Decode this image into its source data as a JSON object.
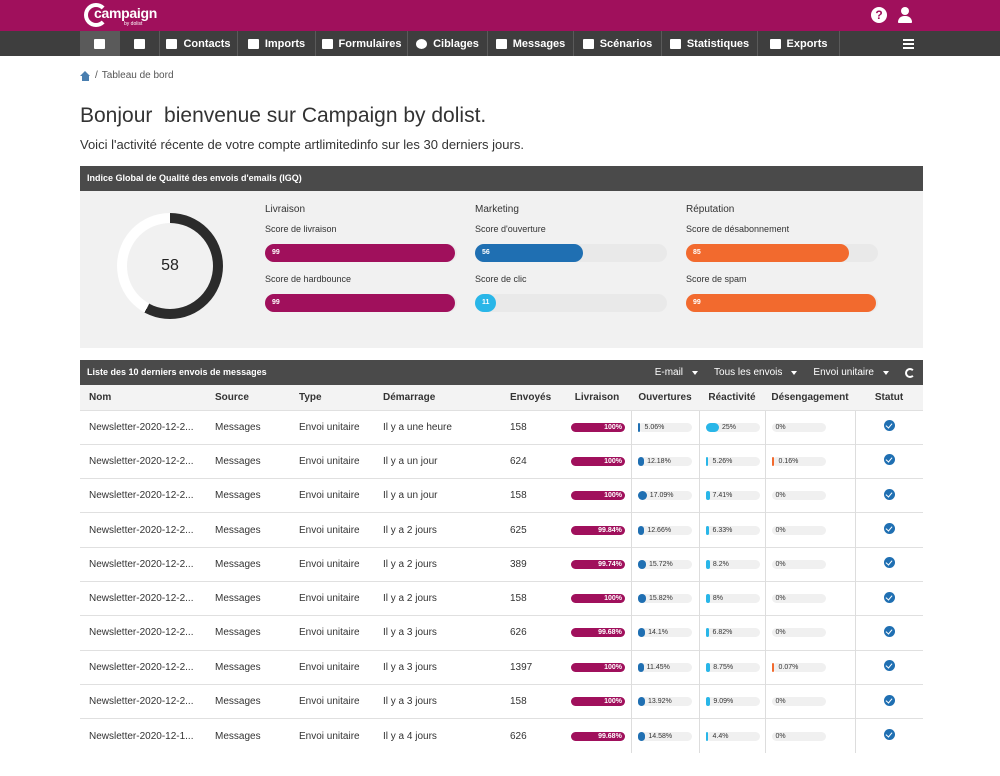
{
  "colors": {
    "brand": "#a0105c",
    "nav": "#3e3e3e",
    "opens": "#1f6fb2",
    "reactivity": "#29b6e8",
    "unsub": "#f26a2e"
  },
  "logo": {
    "text": "campaign",
    "sub": "by dolist"
  },
  "header": {
    "help_icon": "help-icon",
    "user_icon": "user-icon"
  },
  "nav": [
    {
      "label": "",
      "icon": "home-icon"
    },
    {
      "label": "",
      "icon": "tag-icon"
    },
    {
      "label": "Contacts",
      "icon": "book-icon"
    },
    {
      "label": "Imports",
      "icon": "download-icon"
    },
    {
      "label": "Formulaires",
      "icon": "form-icon"
    },
    {
      "label": "Ciblages",
      "icon": "target-icon"
    },
    {
      "label": "Messages",
      "icon": "envelope-icon"
    },
    {
      "label": "Scénarios",
      "icon": "scenario-icon"
    },
    {
      "label": "Statistiques",
      "icon": "chart-icon"
    },
    {
      "label": "Exports",
      "icon": "upload-icon"
    }
  ],
  "breadcrumb": {
    "sep": "/",
    "label": "Tableau de bord"
  },
  "page": {
    "title": "Bonjour  bienvenue sur Campaign by dolist.",
    "subtitle": "Voici l'activité récente de votre compte artlimitedinfo sur les 30 derniers jours."
  },
  "igq": {
    "title": "Indice Global de Qualité des envois d'emails (IGQ)",
    "score": "58",
    "score_value": 58,
    "columns": [
      {
        "title": "Livraison",
        "metrics": [
          {
            "label": "Score de livraison",
            "value": "99",
            "pct": 99,
            "color": "#a0105c"
          },
          {
            "label": "Score de hardbounce",
            "value": "99",
            "pct": 99,
            "color": "#a0105c"
          }
        ]
      },
      {
        "title": "Marketing",
        "metrics": [
          {
            "label": "Score d'ouverture",
            "value": "56",
            "pct": 56,
            "color": "#1f6fb2"
          },
          {
            "label": "Score de clic",
            "value": "11",
            "pct": 11,
            "color": "#29b6e8"
          }
        ]
      },
      {
        "title": "Réputation",
        "metrics": [
          {
            "label": "Score de désabonnement",
            "value": "85",
            "pct": 85,
            "color": "#f26a2e"
          },
          {
            "label": "Score de spam",
            "value": "99",
            "pct": 99,
            "color": "#f26a2e"
          }
        ]
      }
    ]
  },
  "sends": {
    "title": "Liste des 10 derniers envois de messages",
    "filters": [
      "E-mail",
      "Tous les envois",
      "Envoi unitaire"
    ],
    "columns": [
      "Nom",
      "Source",
      "Type",
      "Démarrage",
      "Envoyés",
      "Livraison",
      "Ouvertures",
      "Réactivité",
      "Désengagement",
      "Statut"
    ],
    "rows": [
      {
        "name": "Newsletter-2020-12-2...",
        "source": "Messages",
        "type": "Envoi unitaire",
        "start": "Il y a une heure",
        "sent": "158",
        "delivery": "100%",
        "delivery_pct": 100,
        "opens": "5.06%",
        "opens_pct": 5.06,
        "react": "25%",
        "react_pct": 25,
        "dis": "0%",
        "dis_pct": 0
      },
      {
        "name": "Newsletter-2020-12-2...",
        "source": "Messages",
        "type": "Envoi unitaire",
        "start": "Il y a un jour",
        "sent": "624",
        "delivery": "100%",
        "delivery_pct": 100,
        "opens": "12.18%",
        "opens_pct": 12.18,
        "react": "5.26%",
        "react_pct": 5.26,
        "dis": "0.16%",
        "dis_pct": 0.16
      },
      {
        "name": "Newsletter-2020-12-2...",
        "source": "Messages",
        "type": "Envoi unitaire",
        "start": "Il y a un jour",
        "sent": "158",
        "delivery": "100%",
        "delivery_pct": 100,
        "opens": "17.09%",
        "opens_pct": 17.09,
        "react": "7.41%",
        "react_pct": 7.41,
        "dis": "0%",
        "dis_pct": 0
      },
      {
        "name": "Newsletter-2020-12-2...",
        "source": "Messages",
        "type": "Envoi unitaire",
        "start": "Il y a 2 jours",
        "sent": "625",
        "delivery": "99.84%",
        "delivery_pct": 99.84,
        "opens": "12.66%",
        "opens_pct": 12.66,
        "react": "6.33%",
        "react_pct": 6.33,
        "dis": "0%",
        "dis_pct": 0
      },
      {
        "name": "Newsletter-2020-12-2...",
        "source": "Messages",
        "type": "Envoi unitaire",
        "start": "Il y a 2 jours",
        "sent": "389",
        "delivery": "99.74%",
        "delivery_pct": 99.74,
        "opens": "15.72%",
        "opens_pct": 15.72,
        "react": "8.2%",
        "react_pct": 8.2,
        "dis": "0%",
        "dis_pct": 0
      },
      {
        "name": "Newsletter-2020-12-2...",
        "source": "Messages",
        "type": "Envoi unitaire",
        "start": "Il y a 2 jours",
        "sent": "158",
        "delivery": "100%",
        "delivery_pct": 100,
        "opens": "15.82%",
        "opens_pct": 15.82,
        "react": "8%",
        "react_pct": 8,
        "dis": "0%",
        "dis_pct": 0
      },
      {
        "name": "Newsletter-2020-12-2...",
        "source": "Messages",
        "type": "Envoi unitaire",
        "start": "Il y a 3 jours",
        "sent": "626",
        "delivery": "99.68%",
        "delivery_pct": 99.68,
        "opens": "14.1%",
        "opens_pct": 14.1,
        "react": "6.82%",
        "react_pct": 6.82,
        "dis": "0%",
        "dis_pct": 0
      },
      {
        "name": "Newsletter-2020-12-2...",
        "source": "Messages",
        "type": "Envoi unitaire",
        "start": "Il y a 3 jours",
        "sent": "1397",
        "delivery": "100%",
        "delivery_pct": 100,
        "opens": "11.45%",
        "opens_pct": 11.45,
        "react": "8.75%",
        "react_pct": 8.75,
        "dis": "0.07%",
        "dis_pct": 0.07
      },
      {
        "name": "Newsletter-2020-12-2...",
        "source": "Messages",
        "type": "Envoi unitaire",
        "start": "Il y a 3 jours",
        "sent": "158",
        "delivery": "100%",
        "delivery_pct": 100,
        "opens": "13.92%",
        "opens_pct": 13.92,
        "react": "9.09%",
        "react_pct": 9.09,
        "dis": "0%",
        "dis_pct": 0
      },
      {
        "name": "Newsletter-2020-12-1...",
        "source": "Messages",
        "type": "Envoi unitaire",
        "start": "Il y a 4 jours",
        "sent": "626",
        "delivery": "99.68%",
        "delivery_pct": 99.68,
        "opens": "14.58%",
        "opens_pct": 14.58,
        "react": "4.4%",
        "react_pct": 4.4,
        "dis": "0%",
        "dis_pct": 0
      }
    ],
    "status_icon": "check-circle-icon"
  }
}
